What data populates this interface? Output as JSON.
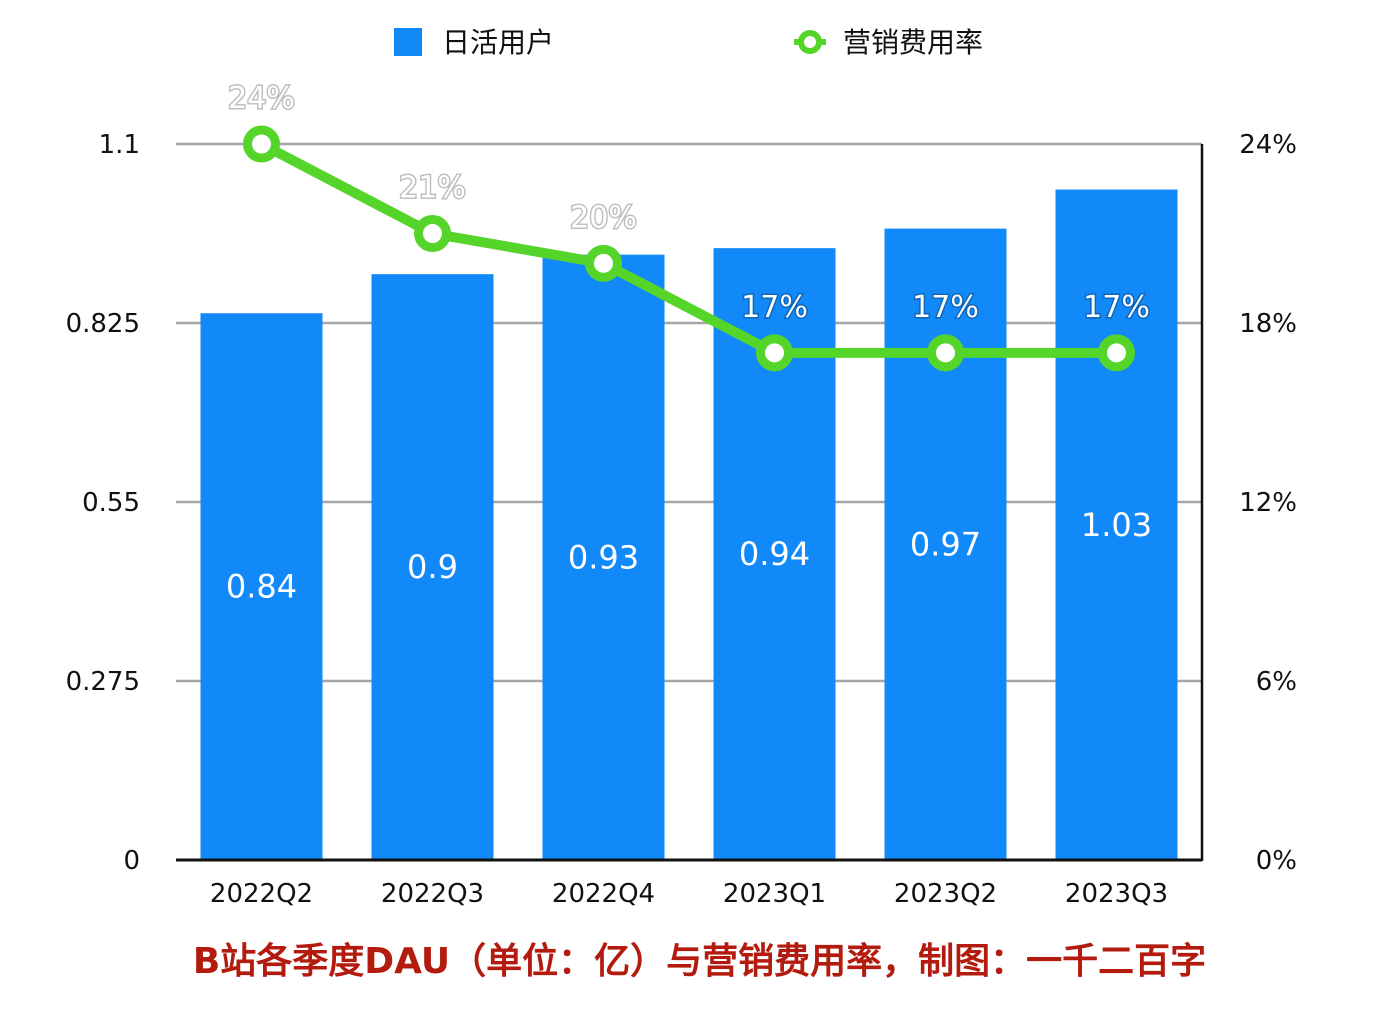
{
  "caption": "B站各季度DAU（单位：亿）与营销费用率，制图：一千二百字",
  "colors": {
    "bar": "#1289f8",
    "line": "#55d42a",
    "grid": "#a6a6a6",
    "axis": "#111111",
    "caption": "#b31b0f"
  },
  "chart_data": {
    "type": "bar",
    "categories": [
      "2022Q2",
      "2022Q3",
      "2022Q4",
      "2023Q1",
      "2023Q2",
      "2023Q3"
    ],
    "series": [
      {
        "name": "日活用户",
        "type": "bar",
        "axis": "left",
        "values": [
          0.84,
          0.9,
          0.93,
          0.94,
          0.97,
          1.03
        ],
        "labels": [
          "0.84",
          "0.9",
          "0.93",
          "0.94",
          "0.97",
          "1.03"
        ]
      },
      {
        "name": "营销费用率",
        "type": "line",
        "axis": "right",
        "values": [
          24,
          21,
          20,
          17,
          17,
          17
        ],
        "labels": [
          "24%",
          "21%",
          "20%",
          "17%",
          "17%",
          "17%"
        ]
      }
    ],
    "y_left": {
      "range": [
        0,
        1.1
      ],
      "ticks": [
        "0",
        "0.275",
        "0.55",
        "0.825",
        "1.1"
      ]
    },
    "y_right": {
      "range": [
        0,
        24
      ],
      "ticks": [
        "0%",
        "6%",
        "12%",
        "18%",
        "24%"
      ]
    },
    "grid": true,
    "legend_position": "top"
  }
}
